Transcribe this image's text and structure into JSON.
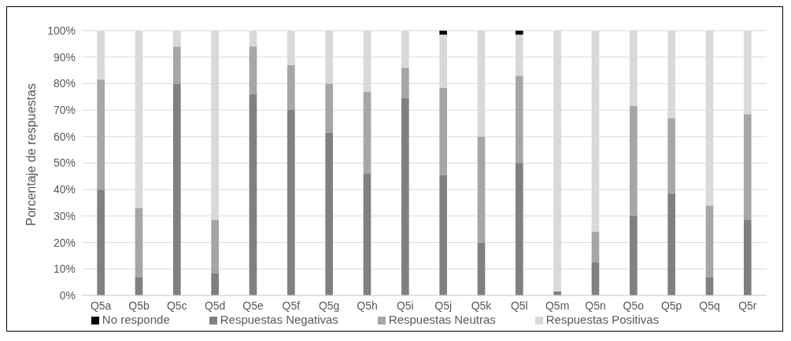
{
  "chart_data": {
    "type": "bar",
    "stacked": true,
    "ylabel": "Porcentaje de respuestas",
    "categories": [
      "Q5a",
      "Q5b",
      "Q5c",
      "Q5d",
      "Q5e",
      "Q5f",
      "Q5g",
      "Q5h",
      "Q5i",
      "Q5j",
      "Q5k",
      "Q5l",
      "Q5m",
      "Q5n",
      "Q5o",
      "Q5p",
      "Q5q",
      "Q5r"
    ],
    "series": [
      {
        "name": "Respuestas Negativas",
        "color": "#808080",
        "values": [
          40,
          7,
          80,
          8.5,
          76,
          70,
          61.5,
          46,
          74.5,
          45.5,
          20,
          50,
          1.5,
          12.5,
          30,
          38.5,
          7,
          28.5
        ]
      },
      {
        "name": "Respuestas Neutras",
        "color": "#a6a6a6",
        "values": [
          41.5,
          26,
          14,
          20,
          18,
          17,
          18.5,
          31,
          11.5,
          33,
          40,
          33,
          0,
          11.5,
          41.5,
          28.5,
          27,
          40
        ]
      },
      {
        "name": "Respuestas Positivas",
        "color": "#d9d9d9",
        "values": [
          18.5,
          67,
          6,
          71.5,
          6,
          13,
          20,
          23,
          14,
          20,
          40,
          15.5,
          98.5,
          76,
          28.5,
          33,
          66,
          31.5
        ]
      },
      {
        "name": "No responde",
        "color": "#000000",
        "values": [
          0,
          0,
          0,
          0,
          0,
          0,
          0,
          0,
          0,
          1.5,
          0,
          1.5,
          0,
          0,
          0,
          0,
          0,
          0
        ]
      }
    ],
    "ylim": [
      0,
      100
    ],
    "yticks": [
      {
        "value": 0,
        "label": "0%"
      },
      {
        "value": 10,
        "label": "10%"
      },
      {
        "value": 20,
        "label": "20%"
      },
      {
        "value": 30,
        "label": "30%"
      },
      {
        "value": 40,
        "label": "40%"
      },
      {
        "value": 50,
        "label": "50%"
      },
      {
        "value": 60,
        "label": "60%"
      },
      {
        "value": 70,
        "label": "70%"
      },
      {
        "value": 80,
        "label": "80%"
      },
      {
        "value": 90,
        "label": "90%"
      },
      {
        "value": 100,
        "label": "100%"
      }
    ],
    "grid": "y",
    "legend": "bottom"
  }
}
